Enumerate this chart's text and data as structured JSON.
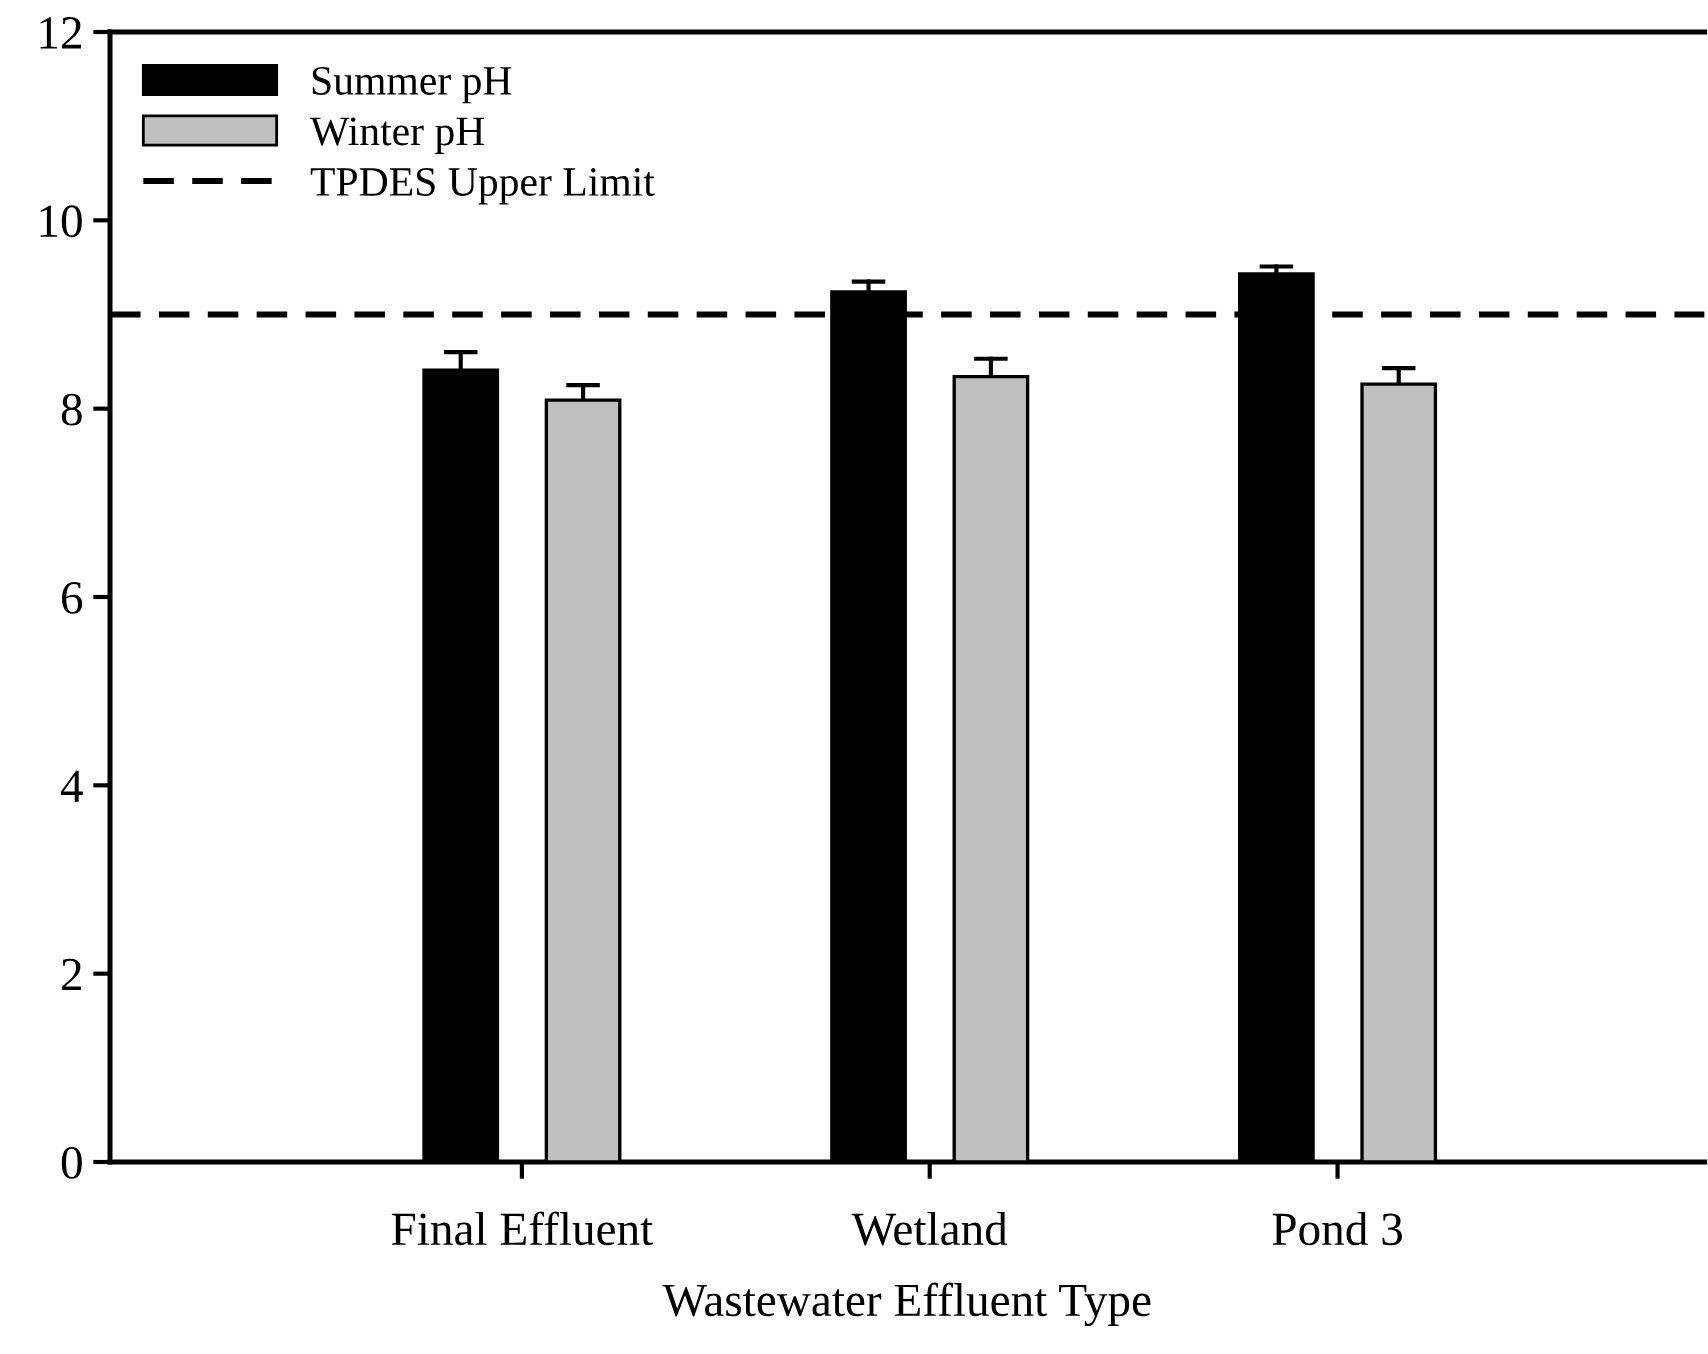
{
  "chart_data": {
    "type": "bar",
    "xlabel": "Wastewater Effluent Type",
    "categories": [
      "Final Effluent",
      "Wetland",
      "Pond 3"
    ],
    "series": [
      {
        "name": "Summer pH",
        "color": "#000000",
        "values": [
          8.41,
          9.24,
          9.43
        ],
        "errors": [
          [
            8.41,
            8.6
          ],
          [
            9.24,
            9.35
          ],
          [
            9.43,
            9.51
          ]
        ]
      },
      {
        "name": "Winter pH",
        "color": "#c0c0c0",
        "values": [
          8.09,
          8.34,
          8.26
        ],
        "errors": [
          [
            8.09,
            8.25
          ],
          [
            8.34,
            8.53
          ],
          [
            8.26,
            8.43
          ]
        ]
      }
    ],
    "ref_lines": [
      {
        "axis": "y",
        "value": 9,
        "label": "TPDES Upper Limit",
        "color": "#000000",
        "line_style": "dashed"
      }
    ],
    "ylim": [
      0,
      12
    ],
    "yticks": [
      0,
      2,
      4,
      6,
      8,
      10,
      12
    ],
    "grid": false,
    "legend": "top left"
  }
}
